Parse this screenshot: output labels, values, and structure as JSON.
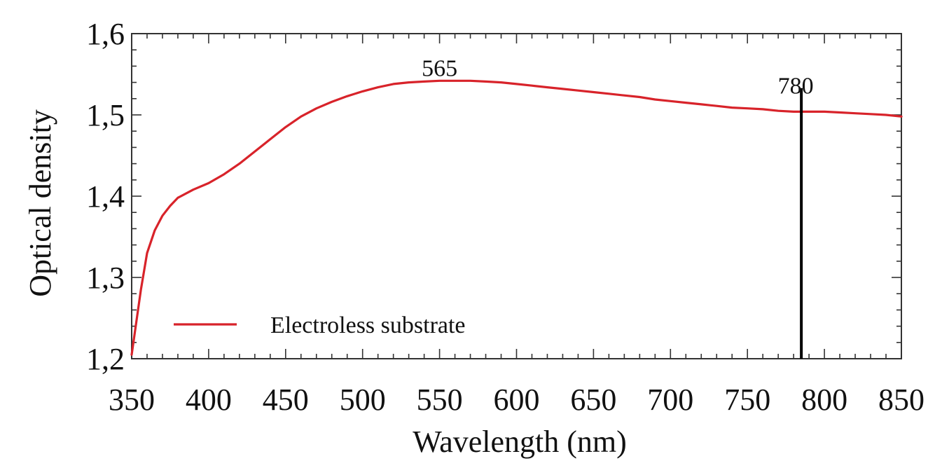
{
  "chart_data": {
    "type": "line",
    "title": "",
    "xlabel": "Wavelength (nm)",
    "ylabel": "Optical density",
    "xlim": [
      350,
      850
    ],
    "ylim": [
      1.2,
      1.6
    ],
    "xticks": [
      350,
      400,
      450,
      500,
      550,
      600,
      650,
      700,
      750,
      800,
      850
    ],
    "xtick_labels": [
      "350",
      "400",
      "450",
      "500",
      "550",
      "600",
      "650",
      "700",
      "750",
      "800",
      "850"
    ],
    "yticks": [
      1.2,
      1.3,
      1.4,
      1.5,
      1.6
    ],
    "ytick_labels": [
      "1,2",
      "1,3",
      "1,4",
      "1,5",
      "1,6"
    ],
    "grid": false,
    "legend_position": "bottom-left",
    "series": [
      {
        "name": "Electroless substrate",
        "color": "#d8232a",
        "x": [
          350,
          353,
          356,
          360,
          365,
          370,
          375,
          380,
          390,
          400,
          410,
          420,
          430,
          440,
          450,
          460,
          470,
          480,
          490,
          500,
          510,
          520,
          530,
          540,
          550,
          560,
          565,
          570,
          580,
          590,
          600,
          610,
          620,
          630,
          640,
          650,
          660,
          670,
          680,
          690,
          700,
          710,
          720,
          730,
          740,
          750,
          760,
          770,
          780,
          790,
          800,
          810,
          820,
          830,
          840,
          850
        ],
        "y": [
          1.205,
          1.245,
          1.285,
          1.33,
          1.358,
          1.376,
          1.388,
          1.398,
          1.408,
          1.416,
          1.427,
          1.44,
          1.455,
          1.47,
          1.485,
          1.498,
          1.508,
          1.516,
          1.523,
          1.529,
          1.534,
          1.538,
          1.54,
          1.541,
          1.542,
          1.542,
          1.542,
          1.542,
          1.541,
          1.54,
          1.538,
          1.536,
          1.534,
          1.532,
          1.53,
          1.528,
          1.526,
          1.524,
          1.522,
          1.519,
          1.517,
          1.515,
          1.513,
          1.511,
          1.509,
          1.508,
          1.507,
          1.505,
          1.504,
          1.504,
          1.504,
          1.503,
          1.502,
          1.501,
          1.5,
          1.498
        ]
      }
    ],
    "annotations": [
      {
        "text": "565",
        "x": 565,
        "y": 1.542
      },
      {
        "text": "780",
        "x": 785,
        "marker": "vertical-line",
        "color": "#000000",
        "y_top": 1.533
      }
    ]
  }
}
